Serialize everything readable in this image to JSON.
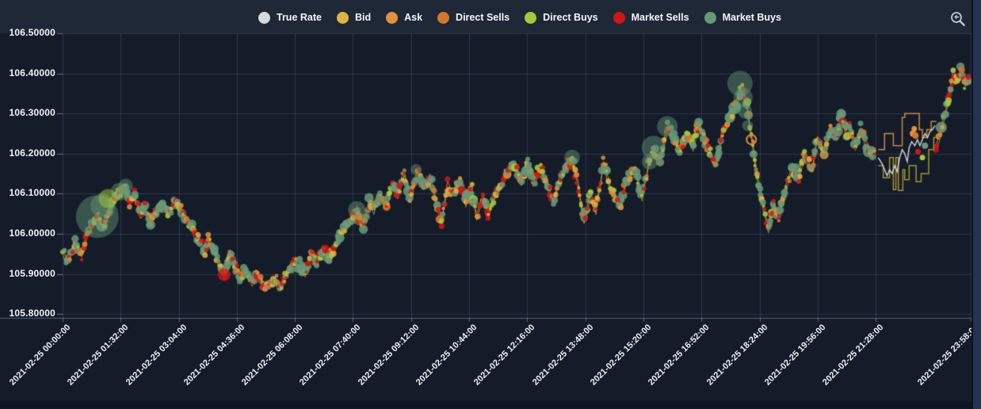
{
  "legend": {
    "items": [
      {
        "label": "True Rate",
        "color": "#d6d9de"
      },
      {
        "label": "Bid",
        "color": "#ddb440"
      },
      {
        "label": "Ask",
        "color": "#e2903e"
      },
      {
        "label": "Direct Sells",
        "color": "#d4772c"
      },
      {
        "label": "Direct Buys",
        "color": "#a6c93a"
      },
      {
        "label": "Market Sells",
        "color": "#cf1717"
      },
      {
        "label": "Market Buys",
        "color": "#679878"
      }
    ]
  },
  "controls": {
    "zoom_reset_tooltip": "Reset zoom"
  },
  "chart_data": {
    "type": "scatter",
    "title": "",
    "date": "2021-02-25",
    "grid": true,
    "legend_position": "top-center",
    "colors": {
      "true_rate": "#d6d9de",
      "bid": "#ddb440",
      "ask": "#e2903e",
      "direct_sells": "#d4772c",
      "direct_buys": "#a6c93a",
      "market_sells": "#cf1717",
      "market_buys": "#679878",
      "grid": "rgba(190,205,225,0.16)",
      "plot_bg": "#141c2a",
      "header_bg": "#1e2836"
    },
    "y_axis": {
      "min": 105.8,
      "max": 106.5,
      "step": 0.1,
      "ticks": [
        "106.50000",
        "106.40000",
        "106.30000",
        "106.20000",
        "106.10000",
        "106.00000",
        "105.90000",
        "105.80000"
      ]
    },
    "x_axis": {
      "range_minutes": [
        0,
        1438
      ],
      "ticks": [
        {
          "t": 0,
          "label": "2021-02-25 00:00:00"
        },
        {
          "t": 92,
          "label": "2021-02-25 01:32:00"
        },
        {
          "t": 184,
          "label": "2021-02-25 03:04:00"
        },
        {
          "t": 276,
          "label": "2021-02-25 04:36:00"
        },
        {
          "t": 368,
          "label": "2021-02-25 06:08:00"
        },
        {
          "t": 460,
          "label": "2021-02-25 07:40:00"
        },
        {
          "t": 552,
          "label": "2021-02-25 09:12:00"
        },
        {
          "t": 644,
          "label": "2021-02-25 10:44:00"
        },
        {
          "t": 736,
          "label": "2021-02-25 12:16:00"
        },
        {
          "t": 828,
          "label": "2021-02-25 13:48:00"
        },
        {
          "t": 920,
          "label": "2021-02-25 15:20:00"
        },
        {
          "t": 1012,
          "label": "2021-02-25 16:52:00"
        },
        {
          "t": 1104,
          "label": "2021-02-25 18:24:00"
        },
        {
          "t": 1196,
          "label": "2021-02-25 19:56:00"
        },
        {
          "t": 1288,
          "label": "2021-02-25 21:28:00"
        },
        {
          "t": 1438,
          "label": "2021-02-25 23:58:00"
        }
      ]
    },
    "rate_path": [
      [
        0,
        105.955
      ],
      [
        8,
        105.935
      ],
      [
        20,
        105.975
      ],
      [
        30,
        105.945
      ],
      [
        39,
        106.0
      ],
      [
        49,
        106.03
      ],
      [
        55,
        106.045
      ],
      [
        64,
        106.02
      ],
      [
        74,
        106.06
      ],
      [
        83,
        106.09
      ],
      [
        92,
        106.1
      ],
      [
        99,
        106.12
      ],
      [
        106,
        106.08
      ],
      [
        114,
        106.095
      ],
      [
        123,
        106.05
      ],
      [
        131,
        106.062
      ],
      [
        139,
        106.03
      ],
      [
        148,
        106.06
      ],
      [
        158,
        106.075
      ],
      [
        167,
        106.05
      ],
      [
        177,
        106.08
      ],
      [
        187,
        106.065
      ],
      [
        196,
        106.04
      ],
      [
        205,
        106.01
      ],
      [
        215,
        105.985
      ],
      [
        225,
        105.958
      ],
      [
        231,
        105.99
      ],
      [
        240,
        105.955
      ],
      [
        249,
        105.92
      ],
      [
        256,
        105.9
      ],
      [
        265,
        105.945
      ],
      [
        274,
        105.918
      ],
      [
        281,
        105.89
      ],
      [
        290,
        105.91
      ],
      [
        300,
        105.878
      ],
      [
        309,
        105.9
      ],
      [
        319,
        105.868
      ],
      [
        328,
        105.875
      ],
      [
        338,
        105.89
      ],
      [
        346,
        105.868
      ],
      [
        355,
        105.905
      ],
      [
        365,
        105.93
      ],
      [
        375,
        105.925
      ],
      [
        384,
        105.9
      ],
      [
        393,
        105.948
      ],
      [
        403,
        105.928
      ],
      [
        413,
        105.96
      ],
      [
        422,
        105.944
      ],
      [
        431,
        105.97
      ],
      [
        441,
        106.0
      ],
      [
        453,
        106.03
      ],
      [
        466,
        106.058
      ],
      [
        476,
        106.012
      ],
      [
        485,
        106.075
      ],
      [
        493,
        106.058
      ],
      [
        503,
        106.095
      ],
      [
        513,
        106.068
      ],
      [
        522,
        106.12
      ],
      [
        531,
        106.1
      ],
      [
        541,
        106.155
      ],
      [
        550,
        106.09
      ],
      [
        562,
        106.158
      ],
      [
        572,
        106.12
      ],
      [
        582,
        106.14
      ],
      [
        591,
        106.088
      ],
      [
        600,
        106.032
      ],
      [
        610,
        106.125
      ],
      [
        619,
        106.1
      ],
      [
        629,
        106.135
      ],
      [
        639,
        106.08
      ],
      [
        648,
        106.11
      ],
      [
        656,
        106.046
      ],
      [
        666,
        106.09
      ],
      [
        675,
        106.05
      ],
      [
        685,
        106.1
      ],
      [
        694,
        106.125
      ],
      [
        704,
        106.155
      ],
      [
        717,
        106.17
      ],
      [
        727,
        106.13
      ],
      [
        736,
        106.18
      ],
      [
        745,
        106.13
      ],
      [
        758,
        106.165
      ],
      [
        768,
        106.12
      ],
      [
        777,
        106.082
      ],
      [
        786,
        106.13
      ],
      [
        795,
        106.16
      ],
      [
        807,
        106.19
      ],
      [
        817,
        106.12
      ],
      [
        826,
        106.032
      ],
      [
        836,
        106.1
      ],
      [
        845,
        106.06
      ],
      [
        857,
        106.178
      ],
      [
        867,
        106.12
      ],
      [
        877,
        106.09
      ],
      [
        884,
        106.07
      ],
      [
        892,
        106.13
      ],
      [
        907,
        106.16
      ],
      [
        918,
        106.095
      ],
      [
        928,
        106.17
      ],
      [
        936,
        106.212
      ],
      [
        946,
        106.18
      ],
      [
        958,
        106.265
      ],
      [
        968,
        106.24
      ],
      [
        978,
        106.21
      ],
      [
        988,
        106.25
      ],
      [
        999,
        106.22
      ],
      [
        1008,
        106.278
      ],
      [
        1018,
        106.23
      ],
      [
        1027,
        106.2
      ],
      [
        1035,
        106.17
      ],
      [
        1045,
        106.25
      ],
      [
        1055,
        106.28
      ],
      [
        1066,
        106.32
      ],
      [
        1077,
        106.37
      ],
      [
        1084,
        106.32
      ],
      [
        1091,
        106.24
      ],
      [
        1097,
        106.18
      ],
      [
        1103,
        106.12
      ],
      [
        1110,
        106.068
      ],
      [
        1118,
        106.01
      ],
      [
        1127,
        106.08
      ],
      [
        1134,
        106.04
      ],
      [
        1143,
        106.1
      ],
      [
        1156,
        106.17
      ],
      [
        1166,
        106.14
      ],
      [
        1176,
        106.2
      ],
      [
        1187,
        106.16
      ],
      [
        1196,
        106.24
      ],
      [
        1206,
        106.2
      ],
      [
        1216,
        106.26
      ],
      [
        1225,
        106.238
      ],
      [
        1234,
        106.295
      ],
      [
        1241,
        106.25
      ],
      [
        1247,
        106.27
      ],
      [
        1256,
        106.22
      ],
      [
        1264,
        106.26
      ],
      [
        1271,
        106.23
      ],
      [
        1279,
        106.208
      ],
      [
        1288,
        106.2
      ],
      [
        1384,
        106.22
      ],
      [
        1392,
        106.26
      ],
      [
        1398,
        106.3
      ],
      [
        1404,
        106.345
      ],
      [
        1410,
        106.4
      ],
      [
        1417,
        106.38
      ],
      [
        1423,
        106.41
      ],
      [
        1429,
        106.375
      ],
      [
        1438,
        106.39
      ]
    ],
    "bubbles": [
      {
        "t": 55,
        "v": 106.043,
        "r": 27,
        "c": "market_buys"
      },
      {
        "t": 63,
        "v": 106.07,
        "r": 15,
        "c": "market_buys"
      },
      {
        "t": 72,
        "v": 106.088,
        "r": 12,
        "c": "direct_buys"
      },
      {
        "t": 90,
        "v": 106.105,
        "r": 11,
        "c": "market_buys"
      },
      {
        "t": 100,
        "v": 106.12,
        "r": 9,
        "c": "market_buys"
      },
      {
        "t": 256,
        "v": 105.898,
        "r": 8,
        "c": "market_sells"
      },
      {
        "t": 466,
        "v": 106.06,
        "r": 11,
        "c": "market_buys"
      },
      {
        "t": 470,
        "v": 106.035,
        "r": 7,
        "c": "direct_sells"
      },
      {
        "t": 560,
        "v": 106.16,
        "r": 7,
        "c": "market_buys"
      },
      {
        "t": 807,
        "v": 106.19,
        "r": 10,
        "c": "market_buys"
      },
      {
        "t": 930,
        "v": 106.18,
        "r": 10,
        "c": "market_buys"
      },
      {
        "t": 936,
        "v": 106.215,
        "r": 15,
        "c": "market_buys"
      },
      {
        "t": 958,
        "v": 106.268,
        "r": 13,
        "c": "market_buys"
      },
      {
        "t": 1073,
        "v": 106.375,
        "r": 16,
        "c": "market_buys"
      },
      {
        "t": 1078,
        "v": 106.34,
        "r": 12,
        "c": "market_buys"
      },
      {
        "t": 1081,
        "v": 106.305,
        "r": 9,
        "c": "market_buys"
      },
      {
        "t": 1085,
        "v": 106.27,
        "r": 7,
        "c": "market_buys"
      }
    ],
    "gap_region": {
      "start": 1288,
      "end": 1384,
      "ask_steps": [
        [
          1292,
          106.21
        ],
        [
          1302,
          106.21
        ],
        [
          1302,
          106.25
        ],
        [
          1316,
          106.25
        ],
        [
          1316,
          106.22
        ],
        [
          1330,
          106.22
        ],
        [
          1330,
          106.29
        ],
        [
          1334,
          106.29
        ],
        [
          1334,
          106.3
        ],
        [
          1357,
          106.3
        ],
        [
          1357,
          106.26
        ],
        [
          1362,
          106.26
        ],
        [
          1362,
          106.24
        ],
        [
          1369,
          106.24
        ],
        [
          1369,
          106.26
        ],
        [
          1376,
          106.26
        ],
        [
          1376,
          106.28
        ],
        [
          1384,
          106.28
        ]
      ],
      "bid_steps": [
        [
          1292,
          106.17
        ],
        [
          1300,
          106.17
        ],
        [
          1300,
          106.14
        ],
        [
          1310,
          106.14
        ],
        [
          1310,
          106.19
        ],
        [
          1316,
          106.19
        ],
        [
          1316,
          106.11
        ],
        [
          1320,
          106.11
        ],
        [
          1320,
          106.19
        ],
        [
          1324,
          106.19
        ],
        [
          1324,
          106.108
        ],
        [
          1331,
          106.108
        ],
        [
          1331,
          106.16
        ],
        [
          1334,
          106.16
        ],
        [
          1334,
          106.135
        ],
        [
          1341,
          106.135
        ],
        [
          1341,
          106.17
        ],
        [
          1352,
          106.17
        ],
        [
          1352,
          106.13
        ],
        [
          1360,
          106.13
        ],
        [
          1360,
          106.15
        ],
        [
          1372,
          106.15
        ],
        [
          1372,
          106.21
        ],
        [
          1380,
          106.21
        ],
        [
          1380,
          106.24
        ],
        [
          1384,
          106.24
        ]
      ],
      "true_steps": [
        [
          1292,
          106.19
        ],
        [
          1298,
          106.175
        ],
        [
          1302,
          106.16
        ],
        [
          1306,
          106.145
        ],
        [
          1310,
          106.16
        ],
        [
          1314,
          106.15
        ],
        [
          1318,
          106.17
        ],
        [
          1322,
          106.155
        ],
        [
          1326,
          106.19
        ],
        [
          1330,
          106.21
        ],
        [
          1334,
          106.2
        ],
        [
          1338,
          106.18
        ],
        [
          1341,
          106.215
        ],
        [
          1345,
          106.23
        ],
        [
          1350,
          106.22
        ],
        [
          1354,
          106.235
        ],
        [
          1358,
          106.22
        ],
        [
          1362,
          106.235
        ],
        [
          1366,
          106.25
        ],
        [
          1370,
          106.24
        ],
        [
          1374,
          106.255
        ],
        [
          1378,
          106.26
        ],
        [
          1382,
          106.27
        ]
      ],
      "extra_dots": [
        {
          "t": 1347,
          "v": 106.25,
          "c": "ask",
          "r": 4
        },
        {
          "t": 1351,
          "v": 106.245,
          "c": "direct_sells",
          "r": 4
        },
        {
          "t": 1349,
          "v": 106.262,
          "c": "ask",
          "r": 3.5
        },
        {
          "t": 1355,
          "v": 106.205,
          "c": "market_sells",
          "r": 3.5
        },
        {
          "t": 1362,
          "v": 106.19,
          "c": "direct_buys",
          "r": 3.5
        },
        {
          "t": 1366,
          "v": 106.22,
          "c": "market_buys",
          "r": 4
        },
        {
          "t": 1091,
          "v": 106.235,
          "c": "ask",
          "r": 6,
          "ring": true
        }
      ]
    }
  }
}
